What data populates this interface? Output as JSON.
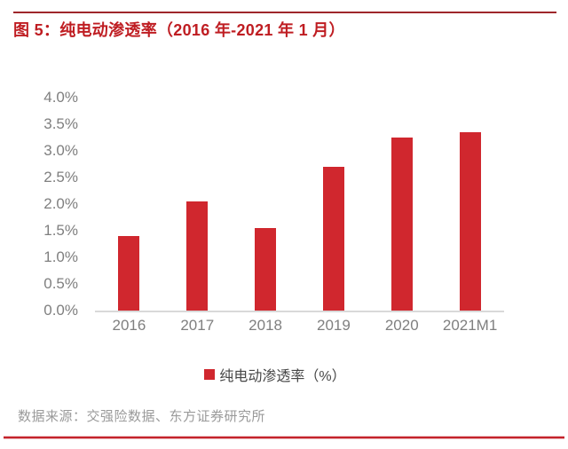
{
  "page": {
    "title": "图 5：纯电动渗透率（2016 年-2021 年 1 月）",
    "source_note": "数据来源：交强险数据、东方证券研究所"
  },
  "colors": {
    "bar": "#D0272E",
    "title_red": "#BF1D22",
    "top_rule": "#9E262B",
    "bottom_rule": "#C4232B",
    "tick_gray": "#7F7F7F",
    "legend_text": "#474747",
    "source_gray": "#9A9A9A",
    "axis_line": "#D9D9D9"
  },
  "legend": {
    "label": "纯电动渗透率（%）"
  },
  "chart_data": {
    "type": "bar",
    "title": "图 5：纯电动渗透率（2016 年-2021 年 1 月）",
    "categories": [
      "2016",
      "2017",
      "2018",
      "2019",
      "2020",
      "2021M1"
    ],
    "values": [
      1.4,
      2.05,
      1.55,
      2.7,
      3.25,
      3.35
    ],
    "series_name": "纯电动渗透率（%）",
    "xlabel": "",
    "ylabel": "",
    "ylim": [
      0,
      4.0
    ],
    "ytick_step": 0.5,
    "ytick_labels": [
      "0.0%",
      "0.5%",
      "1.0%",
      "1.5%",
      "2.0%",
      "2.5%",
      "3.0%",
      "3.5%",
      "4.0%"
    ],
    "grid": false,
    "legend_position": "bottom",
    "bar_color": "#D0272E"
  }
}
